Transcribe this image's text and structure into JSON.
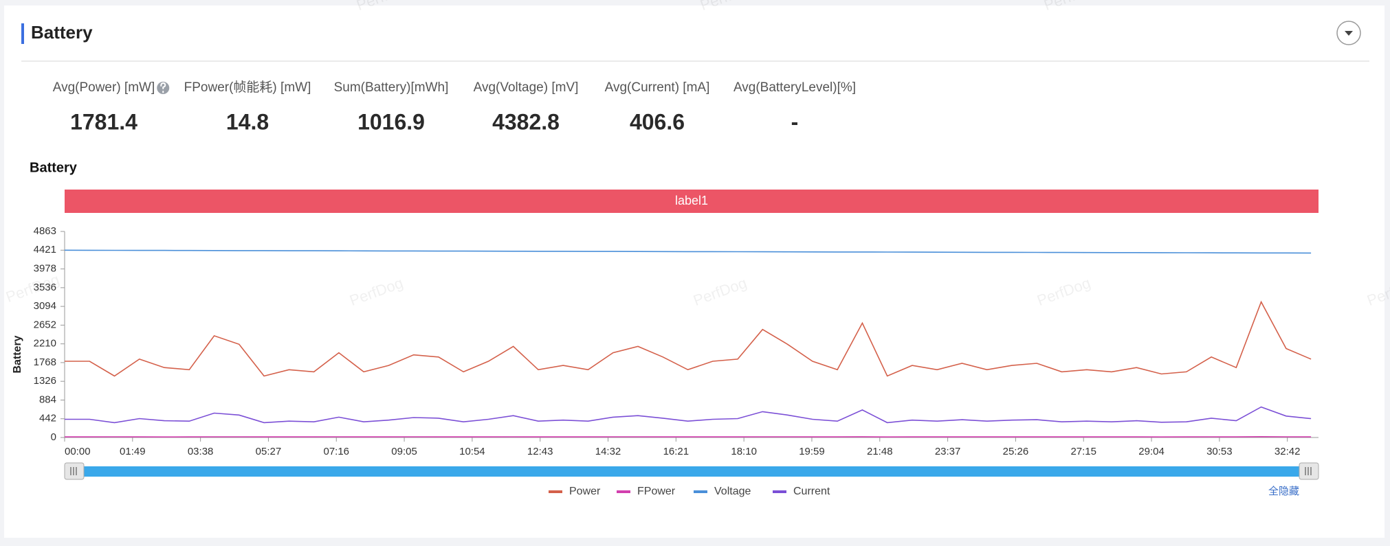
{
  "header": {
    "title": "Battery"
  },
  "stats": [
    {
      "label": "Avg(Power) [mW]",
      "value": 1781.4
    },
    {
      "label": "FPower(帧能耗) [mW]",
      "value": 14.8
    },
    {
      "label": "Sum(Battery)[mWh]",
      "value": 1016.9
    },
    {
      "label": "Avg(Voltage) [mV]",
      "value": 4382.8
    },
    {
      "label": "Avg(Current) [mA]",
      "value": 406.6
    },
    {
      "label": "Avg(BatteryLevel)[%]",
      "value": "-"
    }
  ],
  "watermark": "PerfDog",
  "hide_all": "全隐藏",
  "chart_data": {
    "type": "line",
    "title": "Battery",
    "band_label": "label1",
    "ylabel": "Battery",
    "x": [
      0,
      40,
      80,
      120,
      160,
      200,
      240,
      280,
      320,
      360,
      400,
      440,
      480,
      520,
      560,
      600,
      640,
      680,
      720,
      760,
      800,
      840,
      880,
      920,
      960,
      1000,
      1040,
      1080,
      1120,
      1160,
      1200,
      1240,
      1280,
      1320,
      1360,
      1400,
      1440,
      1480,
      1520,
      1560,
      1600,
      1640,
      1680,
      1720,
      1760,
      1800,
      1840,
      1880,
      1920,
      1960,
      2000
    ],
    "xlim": [
      0,
      2012
    ],
    "xticks": [
      {
        "value": 0,
        "label": "00:00"
      },
      {
        "value": 109,
        "label": "01:49"
      },
      {
        "value": 218,
        "label": "03:38"
      },
      {
        "value": 327,
        "label": "05:27"
      },
      {
        "value": 436,
        "label": "07:16"
      },
      {
        "value": 545,
        "label": "09:05"
      },
      {
        "value": 654,
        "label": "10:54"
      },
      {
        "value": 763,
        "label": "12:43"
      },
      {
        "value": 872,
        "label": "14:32"
      },
      {
        "value": 981,
        "label": "16:21"
      },
      {
        "value": 1090,
        "label": "18:10"
      },
      {
        "value": 1199,
        "label": "19:59"
      },
      {
        "value": 1308,
        "label": "21:48"
      },
      {
        "value": 1417,
        "label": "23:37"
      },
      {
        "value": 1526,
        "label": "25:26"
      },
      {
        "value": 1635,
        "label": "27:15"
      },
      {
        "value": 1744,
        "label": "29:04"
      },
      {
        "value": 1853,
        "label": "30:53"
      },
      {
        "value": 1962,
        "label": "32:42"
      }
    ],
    "ylim": [
      0,
      4863
    ],
    "yticks": [
      0,
      442,
      884,
      1326,
      1768,
      2210,
      2652,
      3094,
      3536,
      3978,
      4421,
      4863
    ],
    "grid": false,
    "legend": "bottom",
    "series": [
      {
        "name": "Power",
        "color": "#d4604a",
        "values": [
          1800,
          1800,
          1450,
          1850,
          1650,
          1600,
          2400,
          2200,
          1450,
          1600,
          1550,
          2000,
          1550,
          1700,
          1950,
          1900,
          1550,
          1800,
          2150,
          1600,
          1700,
          1600,
          2000,
          2150,
          1900,
          1600,
          1800,
          1850,
          2550,
          2200,
          1800,
          1600,
          2700,
          1450,
          1700,
          1600,
          1750,
          1600,
          1700,
          1750,
          1550,
          1600,
          1550,
          1650,
          1500,
          1550,
          1900,
          1650,
          3200,
          2100,
          1850
        ]
      },
      {
        "name": "FPower",
        "color": "#d23fae",
        "values": [
          15,
          14,
          16,
          15,
          13,
          15,
          17,
          16,
          14,
          15,
          15,
          16,
          14,
          15,
          16,
          15,
          14,
          15,
          16,
          14,
          15,
          14,
          16,
          16,
          15,
          14,
          15,
          15,
          17,
          16,
          15,
          14,
          18,
          13,
          15,
          14,
          15,
          14,
          15,
          15,
          14,
          14,
          14,
          15,
          13,
          14,
          16,
          15,
          19,
          16,
          15
        ]
      },
      {
        "name": "Voltage",
        "color": "#4a8fd9",
        "values": [
          4420,
          4419,
          4418,
          4416,
          4415,
          4414,
          4412,
          4411,
          4410,
          4408,
          4407,
          4406,
          4404,
          4403,
          4402,
          4400,
          4399,
          4398,
          4396,
          4395,
          4394,
          4392,
          4391,
          4390,
          4388,
          4387,
          4386,
          4384,
          4383,
          4382,
          4380,
          4379,
          4378,
          4376,
          4375,
          4374,
          4372,
          4371,
          4370,
          4368,
          4367,
          4366,
          4364,
          4363,
          4362,
          4360,
          4359,
          4358,
          4356,
          4355,
          4354
        ]
      },
      {
        "name": "Current",
        "color": "#7b4fd6",
        "values": [
          430,
          430,
          350,
          445,
          395,
          385,
          575,
          530,
          350,
          385,
          370,
          480,
          370,
          410,
          470,
          455,
          370,
          430,
          515,
          385,
          410,
          385,
          480,
          515,
          455,
          385,
          430,
          445,
          610,
          530,
          430,
          385,
          650,
          350,
          410,
          385,
          420,
          385,
          410,
          420,
          370,
          385,
          370,
          395,
          360,
          370,
          455,
          395,
          720,
          505,
          445
        ]
      }
    ]
  }
}
